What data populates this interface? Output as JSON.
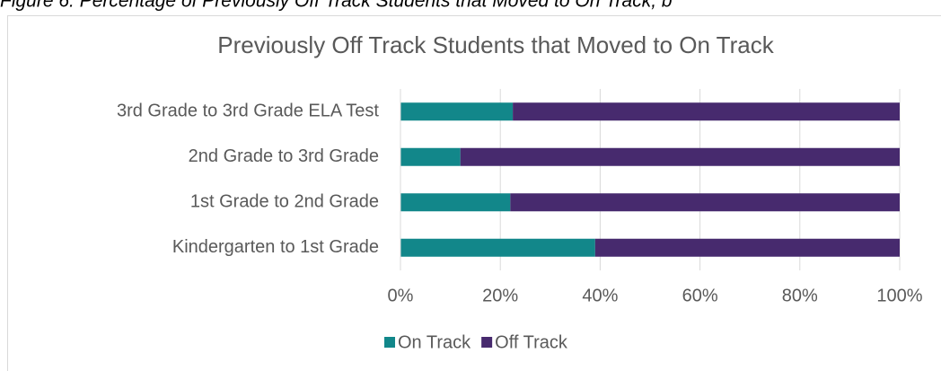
{
  "caption": "Figure 6: Percentage of Previously Off Track Students that Moved to On Track, b",
  "chart_data": {
    "type": "stacked_barh",
    "title": "Previously Off Track Students that Moved to On Track",
    "categories": [
      "3rd Grade to 3rd Grade ELA Test",
      "2nd Grade to 3rd Grade",
      "1st Grade to 2nd Grade",
      "Kindergarten to 1st Grade"
    ],
    "series": [
      {
        "name": "On Track",
        "color": "#12878a",
        "values": [
          22.5,
          12,
          22,
          39
        ]
      },
      {
        "name": "Off Track",
        "color": "#472a6e",
        "values": [
          77.5,
          88,
          78,
          61
        ]
      }
    ],
    "xlim": [
      0,
      100
    ],
    "xticks": [
      {
        "value": 0,
        "label": "0%"
      },
      {
        "value": 20,
        "label": "20%"
      },
      {
        "value": 40,
        "label": "40%"
      },
      {
        "value": 60,
        "label": "60%"
      },
      {
        "value": 80,
        "label": "80%"
      },
      {
        "value": 100,
        "label": "100%"
      }
    ],
    "grid": true,
    "legend": "bottom"
  }
}
